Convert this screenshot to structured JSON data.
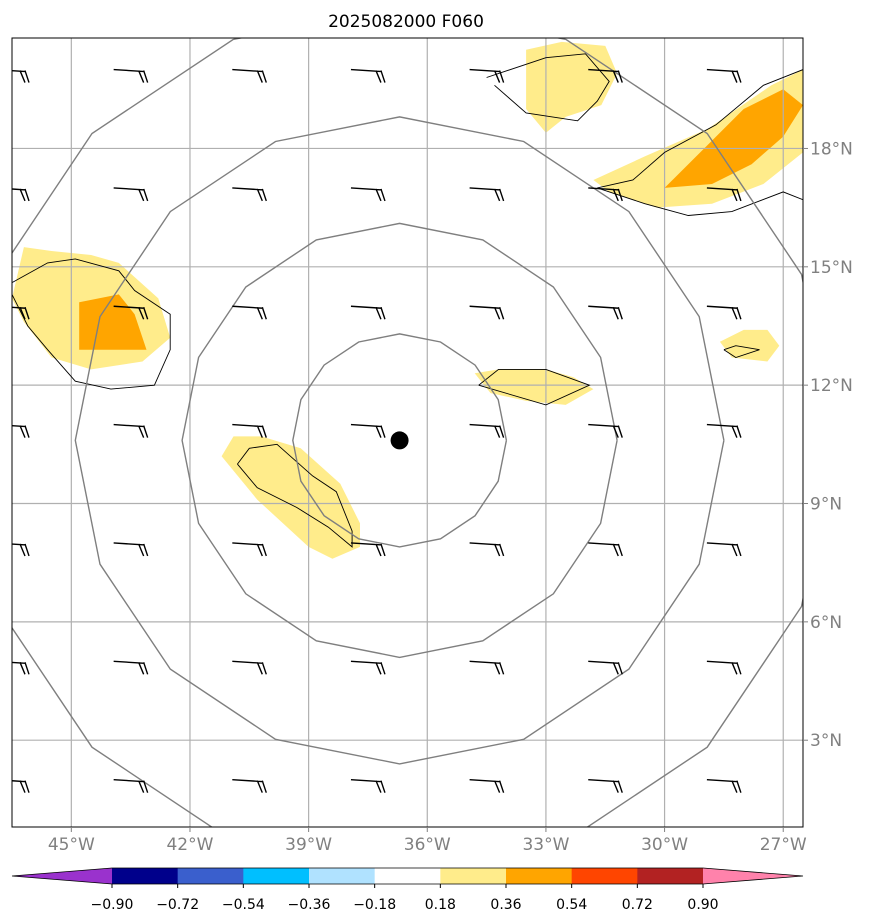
{
  "title": "2025082000 F060",
  "map": {
    "lon_range": [
      -46.5,
      -26.5
    ],
    "lat_range": [
      0.8,
      20.8
    ],
    "center": {
      "lon": -36.7,
      "lat": 10.6
    },
    "lon_ticks": [
      -45,
      -42,
      -39,
      -36,
      -33,
      -30,
      -27
    ],
    "lat_ticks": [
      3,
      6,
      9,
      12,
      15,
      18
    ],
    "lon_labels": [
      "45°W",
      "42°W",
      "39°W",
      "36°W",
      "33°W",
      "30°W",
      "27°W"
    ],
    "lat_labels": [
      "3°N",
      "6°N",
      "9°N",
      "12°N",
      "15°N",
      "18°N"
    ],
    "grid": true,
    "range_ring_radii_deg": [
      2.7,
      5.5,
      8.2,
      11.0
    ]
  },
  "colorbar": {
    "levels": [
      -0.9,
      -0.72,
      -0.54,
      -0.36,
      -0.18,
      0.18,
      0.36,
      0.54,
      0.72,
      0.9
    ],
    "labels": [
      "−0.90",
      "−0.72",
      "−0.54",
      "−0.36",
      "−0.18",
      "0.18",
      "0.36",
      "0.54",
      "0.72",
      "0.90"
    ],
    "colors": [
      "#9a32cd",
      "#00008b",
      "#3a5fcd",
      "#00bfff",
      "#b0e2ff",
      "#ffffff",
      "#ffec8b",
      "#ffa500",
      "#ff4500",
      "#b22222",
      "#ff82ab"
    ]
  },
  "chart_data": {
    "type": "map",
    "title": "2025082000 F060",
    "field_fill": [
      {
        "level": "0.18-0.36",
        "color": "#ffec8b",
        "polygon": [
          [
            -46.5,
            14.2
          ],
          [
            -46.2,
            15.5
          ],
          [
            -45.5,
            15.4
          ],
          [
            -44.5,
            15.3
          ],
          [
            -43.8,
            15.1
          ],
          [
            -42.8,
            14.2
          ],
          [
            -42.5,
            13.2
          ],
          [
            -43.2,
            12.6
          ],
          [
            -44.5,
            12.4
          ],
          [
            -45.5,
            12.7
          ],
          [
            -46.2,
            13.6
          ]
        ]
      },
      {
        "level": "0.36-0.54",
        "color": "#ffa500",
        "polygon": [
          [
            -44.8,
            14.1
          ],
          [
            -43.8,
            14.3
          ],
          [
            -43.4,
            13.8
          ],
          [
            -43.1,
            12.9
          ],
          [
            -44.8,
            12.9
          ]
        ]
      },
      {
        "level": "0.18-0.36",
        "color": "#ffec8b",
        "polygon": [
          [
            -33.5,
            20.5
          ],
          [
            -32.6,
            20.7
          ],
          [
            -31.5,
            20.6
          ],
          [
            -31.2,
            19.9
          ],
          [
            -31.6,
            19.1
          ],
          [
            -32.5,
            18.8
          ],
          [
            -33.0,
            18.4
          ],
          [
            -33.5,
            19.0
          ]
        ]
      },
      {
        "level": "0.18-0.36",
        "color": "#ffec8b",
        "polygon": [
          [
            -31.8,
            17.2
          ],
          [
            -30.5,
            17.8
          ],
          [
            -28.9,
            18.5
          ],
          [
            -27.3,
            19.6
          ],
          [
            -26.5,
            20.0
          ],
          [
            -26.5,
            17.9
          ],
          [
            -27.5,
            17.1
          ],
          [
            -28.8,
            16.6
          ],
          [
            -30.2,
            16.5
          ],
          [
            -31.4,
            16.9
          ]
        ]
      },
      {
        "level": "0.36-0.54",
        "color": "#ffa500",
        "polygon": [
          [
            -30.0,
            17.0
          ],
          [
            -29.0,
            18.0
          ],
          [
            -28.0,
            19.0
          ],
          [
            -27.0,
            19.5
          ],
          [
            -26.5,
            19.1
          ],
          [
            -27.0,
            18.3
          ],
          [
            -27.8,
            17.6
          ],
          [
            -28.8,
            17.1
          ]
        ]
      },
      {
        "level": "0.18-0.36",
        "color": "#ffec8b",
        "polygon": [
          [
            -28.6,
            13.1
          ],
          [
            -28.0,
            13.4
          ],
          [
            -27.4,
            13.4
          ],
          [
            -27.1,
            13.0
          ],
          [
            -27.4,
            12.6
          ],
          [
            -28.3,
            12.7
          ]
        ]
      },
      {
        "level": "0.18-0.36",
        "color": "#ffec8b",
        "polygon": [
          [
            -34.8,
            12.3
          ],
          [
            -34.2,
            12.4
          ],
          [
            -33.0,
            12.4
          ],
          [
            -32.3,
            12.2
          ],
          [
            -31.8,
            11.9
          ],
          [
            -32.5,
            11.5
          ],
          [
            -33.5,
            11.6
          ],
          [
            -34.4,
            11.8
          ]
        ]
      },
      {
        "level": "0.18-0.36",
        "color": "#ffec8b",
        "polygon": [
          [
            -41.2,
            10.2
          ],
          [
            -40.9,
            10.7
          ],
          [
            -40.2,
            10.7
          ],
          [
            -39.2,
            10.4
          ],
          [
            -38.2,
            9.5
          ],
          [
            -37.7,
            8.5
          ],
          [
            -37.7,
            7.9
          ],
          [
            -38.4,
            7.6
          ],
          [
            -39.0,
            7.9
          ],
          [
            -40.3,
            9.1
          ]
        ]
      }
    ],
    "contour_lines": [
      [
        [
          -46.5,
          14.6
        ],
        [
          -45.6,
          15.1
        ],
        [
          -44.9,
          15.2
        ],
        [
          -43.8,
          14.9
        ],
        [
          -43.4,
          14.4
        ],
        [
          -42.5,
          13.8
        ],
        [
          -42.5,
          12.9
        ],
        [
          -42.9,
          12.0
        ],
        [
          -44.0,
          11.9
        ],
        [
          -44.9,
          12.1
        ],
        [
          -45.6,
          12.9
        ],
        [
          -46.1,
          13.5
        ],
        [
          -46.5,
          14.3
        ]
      ],
      [
        [
          -34.5,
          19.8
        ],
        [
          -33.0,
          20.3
        ],
        [
          -32.0,
          20.4
        ],
        [
          -31.4,
          19.7
        ],
        [
          -31.7,
          19.2
        ],
        [
          -32.2,
          18.7
        ],
        [
          -33.5,
          18.9
        ],
        [
          -34.3,
          19.6
        ]
      ],
      [
        [
          -31.7,
          17.0
        ],
        [
          -30.8,
          17.2
        ],
        [
          -30.0,
          17.9
        ],
        [
          -28.7,
          18.6
        ],
        [
          -27.5,
          19.6
        ],
        [
          -26.5,
          20.0
        ]
      ],
      [
        [
          -31.7,
          17.0
        ],
        [
          -30.5,
          16.6
        ],
        [
          -29.4,
          16.3
        ],
        [
          -28.3,
          16.4
        ],
        [
          -27.0,
          16.9
        ],
        [
          -26.5,
          16.7
        ]
      ],
      [
        [
          -28.5,
          12.9
        ],
        [
          -28.2,
          13.0
        ],
        [
          -27.6,
          12.9
        ],
        [
          -28.2,
          12.7
        ],
        [
          -28.5,
          12.9
        ]
      ],
      [
        [
          -34.7,
          12.0
        ],
        [
          -34.2,
          12.4
        ],
        [
          -33.0,
          12.4
        ],
        [
          -31.9,
          12.0
        ],
        [
          -33.0,
          11.5
        ],
        [
          -34.7,
          12.0
        ]
      ],
      [
        [
          -40.8,
          10.0
        ],
        [
          -40.5,
          10.4
        ],
        [
          -39.8,
          10.5
        ],
        [
          -38.9,
          9.7
        ],
        [
          -38.3,
          9.3
        ],
        [
          -37.9,
          8.3
        ],
        [
          -37.9,
          7.9
        ],
        [
          -38.5,
          8.4
        ],
        [
          -39.3,
          8.9
        ],
        [
          -40.3,
          9.4
        ],
        [
          -40.8,
          10.0
        ]
      ]
    ],
    "wind_barbs_grid": {
      "lons": [
        -46.5,
        -43.5,
        -40.5,
        -37.5,
        -34.5,
        -31.5,
        -28.5
      ],
      "lats": [
        2.0,
        5.0,
        8.0,
        11.0,
        14.0,
        17.0,
        20.0
      ]
    },
    "storm_center": {
      "lon": -36.7,
      "lat": 10.6
    }
  }
}
